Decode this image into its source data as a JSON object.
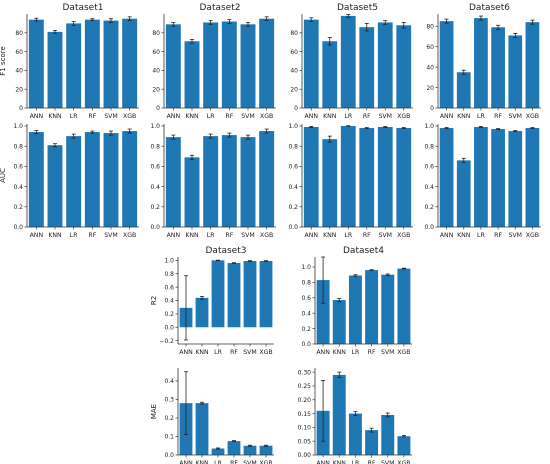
{
  "figure": {
    "bar_color": "#1f77b4",
    "error_color": "#222222",
    "axis_color": "#333333"
  },
  "chart_data": [
    {
      "id": "f1-ds1",
      "type": "bar",
      "title": "Dataset1",
      "ylabel": "F1 score",
      "categories": [
        "ANN",
        "KNN",
        "LR",
        "RF",
        "SVM",
        "XGB"
      ],
      "values": [
        94,
        81,
        90,
        94,
        93,
        95
      ],
      "errors": [
        1.5,
        1.5,
        2,
        1,
        2,
        2
      ],
      "ylim": [
        0,
        100
      ],
      "yticks": [
        0,
        20,
        40,
        60,
        80
      ],
      "ytick_labels": [
        "0",
        "20",
        "40",
        "60",
        "80"
      ]
    },
    {
      "id": "f1-ds2",
      "type": "bar",
      "title": "Dataset2",
      "ylabel": "",
      "categories": [
        "ANN",
        "KNN",
        "LR",
        "RF",
        "SVM",
        "XGB"
      ],
      "values": [
        89,
        71,
        91,
        92,
        89,
        95
      ],
      "errors": [
        2,
        2,
        2,
        2,
        2,
        2
      ],
      "ylim": [
        0,
        100
      ],
      "yticks": [
        0,
        20,
        40,
        60,
        80
      ],
      "ytick_labels": [
        "0",
        "20",
        "40",
        "60",
        "80"
      ]
    },
    {
      "id": "f1-ds5",
      "type": "bar",
      "title": "Dataset5",
      "ylabel": "",
      "categories": [
        "ANN",
        "KNN",
        "LR",
        "RF",
        "SVM",
        "XGB"
      ],
      "values": [
        94,
        71,
        98,
        86,
        91,
        88
      ],
      "errors": [
        2,
        4,
        1.5,
        4,
        2,
        3
      ],
      "ylim": [
        0,
        100
      ],
      "yticks": [
        0,
        20,
        40,
        60,
        80
      ],
      "ytick_labels": [
        "0",
        "20",
        "40",
        "60",
        "80"
      ]
    },
    {
      "id": "f1-ds6",
      "type": "bar",
      "title": "Dataset6",
      "ylabel": "",
      "categories": [
        "ANN",
        "KNN",
        "LR",
        "RF",
        "SVM",
        "XGB"
      ],
      "values": [
        85,
        35,
        88,
        79,
        71,
        84
      ],
      "errors": [
        2,
        2,
        2,
        2,
        2,
        2
      ],
      "ylim": [
        0,
        92
      ],
      "yticks": [
        0,
        20,
        40,
        60,
        80
      ],
      "ytick_labels": [
        "0",
        "20",
        "40",
        "60",
        "80"
      ]
    },
    {
      "id": "auc-ds1",
      "type": "bar",
      "title": "",
      "ylabel": "AUC",
      "categories": [
        "ANN",
        "KNN",
        "LR",
        "RF",
        "SVM",
        "XGB"
      ],
      "values": [
        0.94,
        0.81,
        0.9,
        0.94,
        0.93,
        0.95
      ],
      "errors": [
        0.015,
        0.015,
        0.02,
        0.01,
        0.02,
        0.02
      ],
      "ylim": [
        0,
        1.02
      ],
      "yticks": [
        0,
        0.2,
        0.4,
        0.6,
        0.8,
        1.0
      ],
      "ytick_labels": [
        "0.0",
        "0.2",
        "0.4",
        "0.6",
        "0.8",
        "1.0"
      ]
    },
    {
      "id": "auc-ds2",
      "type": "bar",
      "title": "",
      "ylabel": "",
      "categories": [
        "ANN",
        "KNN",
        "LR",
        "RF",
        "SVM",
        "XGB"
      ],
      "values": [
        0.89,
        0.69,
        0.9,
        0.91,
        0.89,
        0.95
      ],
      "errors": [
        0.02,
        0.02,
        0.02,
        0.02,
        0.02,
        0.02
      ],
      "ylim": [
        0,
        1.02
      ],
      "yticks": [
        0,
        0.2,
        0.4,
        0.6,
        0.8,
        1.0
      ],
      "ytick_labels": [
        "0.0",
        "0.2",
        "0.4",
        "0.6",
        "0.8",
        "1.0"
      ]
    },
    {
      "id": "auc-ds5",
      "type": "bar",
      "title": "",
      "ylabel": "",
      "categories": [
        "ANN",
        "KNN",
        "LR",
        "RF",
        "SVM",
        "XGB"
      ],
      "values": [
        0.99,
        0.87,
        1.0,
        0.98,
        0.99,
        0.98
      ],
      "errors": [
        0.005,
        0.03,
        0.003,
        0.005,
        0.005,
        0.005
      ],
      "ylim": [
        0,
        1.02
      ],
      "yticks": [
        0,
        0.2,
        0.4,
        0.6,
        0.8,
        1.0
      ],
      "ytick_labels": [
        "0.0",
        "0.2",
        "0.4",
        "0.6",
        "0.8",
        "1.0"
      ]
    },
    {
      "id": "auc-ds6",
      "type": "bar",
      "title": "",
      "ylabel": "",
      "categories": [
        "ANN",
        "KNN",
        "LR",
        "RF",
        "SVM",
        "XGB"
      ],
      "values": [
        0.98,
        0.66,
        0.99,
        0.97,
        0.95,
        0.98
      ],
      "errors": [
        0.005,
        0.02,
        0.005,
        0.005,
        0.005,
        0.005
      ],
      "ylim": [
        0,
        1.02
      ],
      "yticks": [
        0,
        0.2,
        0.4,
        0.6,
        0.8,
        1.0
      ],
      "ytick_labels": [
        "0.0",
        "0.2",
        "0.4",
        "0.6",
        "0.8",
        "1.0"
      ]
    },
    {
      "id": "r2-ds3",
      "type": "bar",
      "title": "Dataset3",
      "ylabel": "R2",
      "categories": [
        "ANN",
        "KNN",
        "LR",
        "RF",
        "SVM",
        "XGB"
      ],
      "values": [
        0.29,
        0.44,
        1.0,
        0.96,
        0.99,
        0.99
      ],
      "errors": [
        0.48,
        0.02,
        0.003,
        0.005,
        0.005,
        0.005
      ],
      "ylim": [
        -0.25,
        1.05
      ],
      "yticks": [
        -0.2,
        0.0,
        0.2,
        0.4,
        0.6,
        0.8,
        1.0
      ],
      "ytick_labels": [
        "−0.2",
        "0.0",
        "0.2",
        "0.4",
        "0.6",
        "0.8",
        "1.0"
      ]
    },
    {
      "id": "r2-ds4",
      "type": "bar",
      "title": "Dataset4",
      "ylabel": "",
      "categories": [
        "ANN",
        "KNN",
        "LR",
        "RF",
        "SVM",
        "XGB"
      ],
      "values": [
        0.83,
        0.57,
        0.89,
        0.96,
        0.9,
        0.98
      ],
      "errors": [
        0.3,
        0.02,
        0.01,
        0.005,
        0.01,
        0.005
      ],
      "ylim": [
        0,
        1.13
      ],
      "yticks": [
        0,
        0.2,
        0.4,
        0.6,
        0.8,
        1.0
      ],
      "ytick_labels": [
        "0.0",
        "0.2",
        "0.4",
        "0.6",
        "0.8",
        "1.0"
      ]
    },
    {
      "id": "mae-ds3",
      "type": "bar",
      "title": "",
      "ylabel": "MAE",
      "categories": [
        "ANN",
        "KNN",
        "LR",
        "RF",
        "SVM",
        "XGB"
      ],
      "values": [
        0.28,
        0.28,
        0.035,
        0.075,
        0.05,
        0.05
      ],
      "errors": [
        0.17,
        0.005,
        0.003,
        0.003,
        0.003,
        0.003
      ],
      "ylim": [
        0,
        0.47
      ],
      "yticks": [
        0,
        0.1,
        0.2,
        0.3,
        0.4
      ],
      "ytick_labels": [
        "0.0",
        "0.1",
        "0.2",
        "0.3",
        "0.4"
      ]
    },
    {
      "id": "mae-ds4",
      "type": "bar",
      "title": "",
      "ylabel": "",
      "categories": [
        "ANN",
        "KNN",
        "LR",
        "RF",
        "SVM",
        "XGB"
      ],
      "values": [
        0.16,
        0.29,
        0.15,
        0.09,
        0.145,
        0.068
      ],
      "errors": [
        0.11,
        0.01,
        0.007,
        0.007,
        0.007,
        0.003
      ],
      "ylim": [
        0,
        0.315
      ],
      "yticks": [
        0,
        0.05,
        0.1,
        0.15,
        0.2,
        0.25,
        0.3
      ],
      "ytick_labels": [
        "0.00",
        "0.05",
        "0.10",
        "0.15",
        "0.20",
        "0.25",
        "0.30"
      ]
    }
  ]
}
